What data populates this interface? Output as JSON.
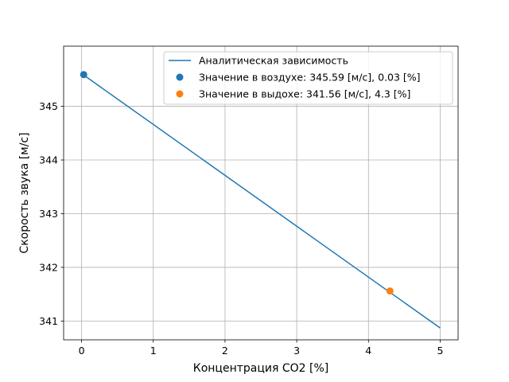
{
  "chart_data": {
    "type": "line",
    "xlabel": "Концентрация CO2 [%]",
    "ylabel": "Скорость звука [м/с]",
    "xlim": [
      -0.25,
      5.25
    ],
    "ylim": [
      340.65,
      346.12
    ],
    "xticks": [
      0,
      1,
      2,
      3,
      4,
      5
    ],
    "yticks": [
      341,
      342,
      343,
      344,
      345
    ],
    "grid": true,
    "legend_position": "top-right",
    "series": [
      {
        "name": "Аналитическая зависимость",
        "kind": "line",
        "color": "#1f77b4",
        "x": [
          0,
          5
        ],
        "y": [
          345.61,
          340.87
        ]
      },
      {
        "name": "Значение в воздухе: 345.59 [м/с], 0.03 [%]",
        "kind": "scatter",
        "color": "#1f77b4",
        "x": [
          0.03
        ],
        "y": [
          345.59
        ]
      },
      {
        "name": "Значение в выдохе: 341.56 [м/с], 4.3 [%]",
        "kind": "scatter",
        "color": "#ff7f0e",
        "x": [
          4.3
        ],
        "y": [
          341.56
        ]
      }
    ]
  }
}
